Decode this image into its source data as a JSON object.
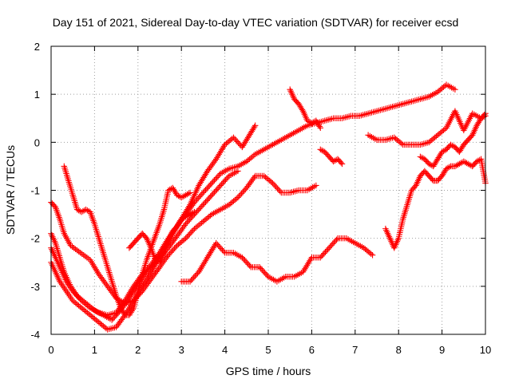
{
  "chart_data": {
    "type": "scatter",
    "title": "Day 151 of 2021, Sidereal Day-to-day VTEC variation (SDTVAR) for receiver ecsd",
    "xlabel": "GPS time / hours",
    "ylabel": "SDTVAR / TECUs",
    "xlim": [
      0,
      10
    ],
    "ylim": [
      -4,
      2
    ],
    "x_ticks": [
      "0",
      "1",
      "2",
      "3",
      "4",
      "5",
      "6",
      "7",
      "8",
      "9",
      "10"
    ],
    "y_ticks": [
      "-4",
      "-3",
      "-2",
      "-1",
      "0",
      "1",
      "2"
    ],
    "grid": true,
    "marker": "plus",
    "color": "#ff0000",
    "series": [
      {
        "x": [
          0.0,
          0.1,
          0.2,
          0.35,
          0.5,
          0.7,
          0.9,
          1.1,
          1.3,
          1.5,
          1.7,
          1.9,
          2.1,
          2.3,
          2.5,
          2.7,
          2.9,
          3.1,
          3.3,
          3.5,
          3.7,
          3.9,
          4.1,
          4.3
        ],
        "y": [
          -2.5,
          -2.7,
          -2.9,
          -3.1,
          -3.3,
          -3.45,
          -3.6,
          -3.75,
          -3.9,
          -3.85,
          -3.6,
          -3.3,
          -3.0,
          -2.7,
          -2.4,
          -2.2,
          -1.95,
          -1.7,
          -1.5,
          -1.3,
          -1.1,
          -0.9,
          -0.7,
          -0.6
        ]
      },
      {
        "x": [
          0.0,
          0.1,
          0.2,
          0.3,
          0.45,
          0.6,
          0.8,
          1.0,
          1.2,
          1.4,
          1.6,
          1.8,
          2.0,
          2.2,
          2.4,
          2.6,
          2.8,
          3.0,
          3.2,
          3.4,
          3.6,
          3.8,
          4.0,
          4.2,
          4.4,
          4.6,
          4.7
        ],
        "y": [
          -1.9,
          -2.1,
          -2.4,
          -2.7,
          -3.0,
          -3.2,
          -3.35,
          -3.5,
          -3.6,
          -3.7,
          -3.5,
          -3.25,
          -2.95,
          -2.7,
          -2.5,
          -2.2,
          -1.9,
          -1.6,
          -1.3,
          -0.9,
          -0.6,
          -0.35,
          -0.05,
          0.1,
          -0.1,
          0.2,
          0.35
        ]
      },
      {
        "x": [
          0.0,
          0.1,
          0.2,
          0.35,
          0.5,
          0.7,
          0.9,
          1.1,
          1.3,
          1.5,
          1.7,
          1.9,
          2.1,
          2.3,
          2.5,
          2.7,
          2.9,
          3.1,
          3.3,
          3.5,
          3.7,
          3.9,
          4.1,
          4.3,
          4.5,
          4.7,
          4.9,
          5.1,
          5.3,
          5.5,
          5.7,
          5.9,
          6.1,
          6.3,
          6.5,
          6.7,
          6.9,
          7.1,
          7.3,
          7.5,
          7.7,
          7.9,
          8.1,
          8.3,
          8.5,
          8.7,
          8.9,
          9.1,
          9.3
        ],
        "y": [
          -2.2,
          -2.4,
          -2.6,
          -2.9,
          -3.1,
          -3.3,
          -3.45,
          -3.55,
          -3.6,
          -3.55,
          -3.3,
          -3.0,
          -2.75,
          -2.55,
          -2.3,
          -2.0,
          -1.75,
          -1.5,
          -1.25,
          -1.05,
          -0.85,
          -0.65,
          -0.55,
          -0.5,
          -0.4,
          -0.25,
          -0.15,
          -0.05,
          0.05,
          0.15,
          0.25,
          0.35,
          0.4,
          0.45,
          0.5,
          0.5,
          0.55,
          0.55,
          0.6,
          0.65,
          0.7,
          0.75,
          0.8,
          0.85,
          0.9,
          0.95,
          1.05,
          1.2,
          1.1
        ]
      },
      {
        "x": [
          0.0,
          0.1,
          0.2,
          0.3,
          0.45,
          0.6,
          0.75,
          0.9,
          1.1,
          1.3,
          1.5,
          1.7,
          1.9,
          2.1,
          2.3,
          2.5,
          2.7,
          2.9,
          3.1,
          3.3,
          3.5,
          3.7,
          3.9,
          4.1,
          4.3,
          4.5,
          4.7,
          4.9,
          5.1,
          5.3,
          5.5,
          5.7,
          5.9,
          6.1
        ],
        "y": [
          -1.25,
          -1.35,
          -1.6,
          -1.9,
          -2.15,
          -2.25,
          -2.35,
          -2.45,
          -2.75,
          -3.0,
          -3.25,
          -3.35,
          -3.3,
          -3.1,
          -2.85,
          -2.6,
          -2.35,
          -2.15,
          -2.0,
          -1.8,
          -1.65,
          -1.5,
          -1.4,
          -1.3,
          -1.15,
          -0.95,
          -0.7,
          -0.7,
          -0.85,
          -1.05,
          -1.05,
          -1.0,
          -1.0,
          -0.9
        ]
      },
      {
        "x": [
          0.3,
          0.4,
          0.5,
          0.6,
          0.7,
          0.8,
          0.9,
          1.0,
          1.1,
          1.2,
          1.3,
          1.4,
          1.5,
          1.6,
          1.7,
          1.8,
          1.9,
          2.0,
          2.1,
          2.2,
          2.3,
          2.4,
          2.5,
          2.6,
          2.7,
          2.8,
          2.9,
          3.0,
          3.1,
          3.2
        ],
        "y": [
          -0.5,
          -0.8,
          -1.1,
          -1.4,
          -1.45,
          -1.4,
          -1.45,
          -1.7,
          -2.0,
          -2.3,
          -2.6,
          -2.9,
          -3.2,
          -3.45,
          -3.6,
          -3.6,
          -3.45,
          -3.1,
          -2.75,
          -2.45,
          -2.2,
          -1.95,
          -1.7,
          -1.4,
          -1.0,
          -0.95,
          -1.1,
          -1.15,
          -1.1,
          -1.05
        ]
      },
      {
        "x": [
          1.8,
          1.9,
          2.0,
          2.1,
          2.2,
          2.3,
          2.4,
          2.5,
          2.6,
          2.7,
          2.8,
          2.9,
          3.0,
          3.1,
          3.2,
          3.3
        ],
        "y": [
          -2.2,
          -2.1,
          -2.0,
          -1.9,
          -2.0,
          -2.2,
          -2.45,
          -2.5,
          -2.3,
          -2.05,
          -1.85,
          -1.75,
          -1.6,
          -1.55,
          -1.5,
          -1.45
        ]
      },
      {
        "x": [
          3.0,
          3.2,
          3.4,
          3.6,
          3.8,
          4.0,
          4.2,
          4.4,
          4.6,
          4.8,
          5.0,
          5.2,
          5.4,
          5.6,
          5.8,
          6.0,
          6.2,
          6.4,
          6.6,
          6.8,
          7.0,
          7.2,
          7.4
        ],
        "y": [
          -2.9,
          -2.9,
          -2.7,
          -2.4,
          -2.1,
          -2.3,
          -2.3,
          -2.4,
          -2.6,
          -2.6,
          -2.8,
          -2.9,
          -2.8,
          -2.8,
          -2.7,
          -2.4,
          -2.4,
          -2.2,
          -2.0,
          -2.0,
          -2.1,
          -2.2,
          -2.35
        ]
      },
      {
        "x": [
          5.5,
          5.6,
          5.7,
          5.8,
          5.9,
          6.0,
          6.1,
          6.2
        ],
        "y": [
          1.1,
          0.9,
          0.8,
          0.65,
          0.45,
          0.4,
          0.45,
          0.3
        ]
      },
      {
        "x": [
          6.2,
          6.3,
          6.4,
          6.5,
          6.6,
          6.7
        ],
        "y": [
          -0.15,
          -0.2,
          -0.3,
          -0.4,
          -0.35,
          -0.45
        ]
      },
      {
        "x": [
          7.3,
          7.5,
          7.7,
          7.9,
          8.1,
          8.3,
          8.5,
          8.7,
          8.9,
          9.1,
          9.3,
          9.5,
          9.7,
          9.9,
          10.0
        ],
        "y": [
          0.15,
          0.05,
          0.05,
          0.1,
          -0.05,
          -0.05,
          -0.05,
          0.0,
          0.15,
          0.3,
          0.65,
          0.25,
          0.6,
          0.5,
          0.55
        ]
      },
      {
        "x": [
          7.7,
          7.8,
          7.9,
          8.0,
          8.1,
          8.2,
          8.3,
          8.4,
          8.5,
          8.6,
          8.7,
          8.8,
          8.9,
          9.0,
          9.1,
          9.2,
          9.3,
          9.4,
          9.5,
          9.6,
          9.7,
          9.8,
          9.9,
          10.0
        ],
        "y": [
          -1.8,
          -2.0,
          -2.2,
          -2.0,
          -1.6,
          -1.3,
          -1.0,
          -0.9,
          -0.7,
          -0.6,
          -0.7,
          -0.8,
          -0.8,
          -0.7,
          -0.55,
          -0.5,
          -0.5,
          -0.45,
          -0.4,
          -0.45,
          -0.5,
          -0.4,
          -0.35,
          -0.85
        ]
      },
      {
        "x": [
          8.5,
          8.6,
          8.7,
          8.8,
          8.9,
          9.0,
          9.1,
          9.2,
          9.3,
          9.4,
          9.5,
          9.6,
          9.7,
          9.8,
          9.9,
          10.0
        ],
        "y": [
          -0.3,
          -0.35,
          -0.45,
          -0.5,
          -0.35,
          -0.2,
          -0.15,
          -0.05,
          -0.1,
          -0.2,
          -0.05,
          0.05,
          0.15,
          0.35,
          0.5,
          0.6
        ]
      }
    ]
  }
}
